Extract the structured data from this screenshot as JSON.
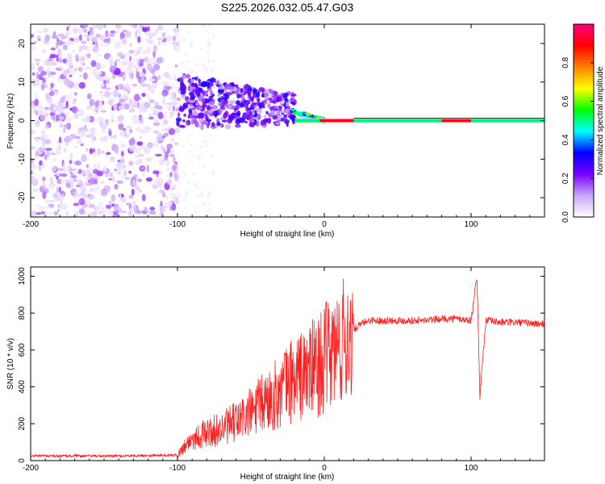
{
  "title": "S225.2026.032.05.47.G03",
  "chart_data": [
    {
      "type": "heatmap",
      "name": "spectrogram",
      "xlabel": "Height of straight line (km)",
      "ylabel": "Frequency (Hz)",
      "xlim": [
        -200,
        150
      ],
      "ylim": [
        -25,
        25
      ],
      "x_ticks": [
        "-200",
        "-100",
        "0",
        "100"
      ],
      "y_ticks": [
        "-20",
        "-10",
        "0",
        "10",
        "20"
      ],
      "colorbar": {
        "label": "Normalized spectral amplitude",
        "range": [
          0.0,
          1.0
        ],
        "ticks": [
          "0.0",
          "0.2",
          "0.4",
          "0.6",
          "0.8"
        ],
        "colors": [
          "#ffffff",
          "#c9a6f7",
          "#7a00ff",
          "#0000ff",
          "#00ffff",
          "#00ff00",
          "#ffff00",
          "#ff7f00",
          "#ff0000",
          "#ff0080"
        ]
      },
      "features": {
        "noise_region_x": [
          -200,
          -100
        ],
        "dispersed_signal_x": [
          -100,
          -20
        ],
        "dispersed_signal_freq_center": 5,
        "narrowband_signal_x": [
          -20,
          150
        ],
        "narrowband_freq": 0
      }
    },
    {
      "type": "line",
      "name": "snr",
      "xlabel": "Height of straight line (km)",
      "ylabel": "SNR (10 * v/v)",
      "xlim": [
        -200,
        150
      ],
      "ylim": [
        0,
        1050
      ],
      "x_ticks": [
        "-200",
        "-100",
        "0",
        "100"
      ],
      "y_ticks": [
        "0",
        "200",
        "400",
        "600",
        "800",
        "1000"
      ],
      "color": "#ff2020",
      "series": [
        {
          "name": "SNR",
          "x": [
            -200,
            -180,
            -160,
            -140,
            -120,
            -100,
            -95,
            -90,
            -80,
            -70,
            -60,
            -50,
            -40,
            -30,
            -25,
            -20,
            -15,
            -10,
            -5,
            0,
            5,
            10,
            15,
            20,
            25,
            30,
            40,
            50,
            60,
            70,
            80,
            90,
            100,
            104,
            106,
            110,
            120,
            130,
            140,
            150
          ],
          "values": [
            25,
            25,
            25,
            25,
            28,
            30,
            80,
            120,
            150,
            170,
            210,
            260,
            320,
            370,
            420,
            450,
            460,
            490,
            510,
            550,
            580,
            620,
            660,
            710,
            740,
            760,
            760,
            760,
            760,
            760,
            770,
            770,
            760,
            1000,
            350,
            760,
            750,
            750,
            745,
            740
          ]
        }
      ]
    }
  ]
}
